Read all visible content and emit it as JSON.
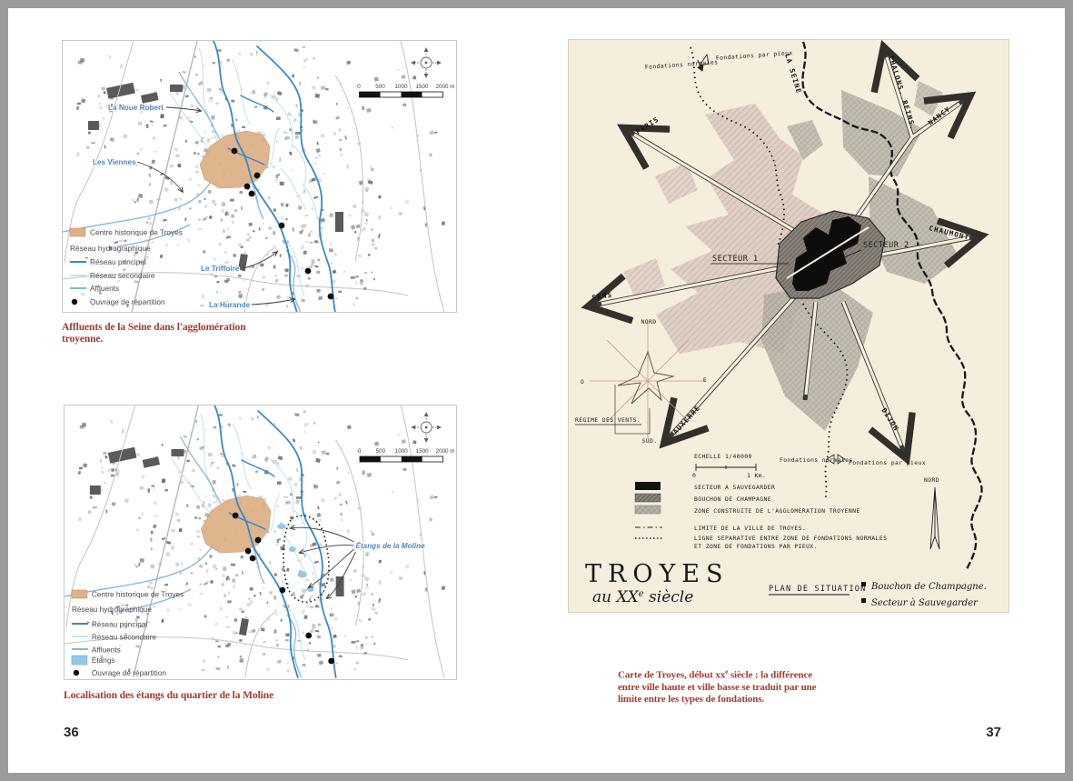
{
  "page": {
    "left_number": "36",
    "right_number": "37"
  },
  "map1": {
    "caption": {
      "line1": "Affluents de la Seine dans l'agglomération",
      "line2": "troyenne."
    },
    "place_labels": {
      "noue_robert": "La Noue Robert",
      "viennes": "Les Viennes",
      "triffoire": "Le Triffoire",
      "hurande": "La Hurande"
    },
    "legend": {
      "centre": "Centre historique de Troyes",
      "header": "Réseau hydrographique",
      "principal": "Réseau principal",
      "secondaire": "Réseau secondaire",
      "affluents": "Affluents",
      "ouvrage": "Ouvrage de répartition"
    },
    "scalebar": {
      "t0": "0",
      "t500": "500",
      "t1000": "1000",
      "t1500": "1500",
      "t2000": "2000 m"
    }
  },
  "map2": {
    "caption": "Localisation des étangs du quartier de la Moline",
    "place_labels": {
      "etangs_moline": "Étangs de la Moline"
    },
    "legend": {
      "centre": "Centre historique de Troyes",
      "header": "Réseau hydrographique",
      "principal": "Réseau principal",
      "secondaire": "Réseau secondaire",
      "affluents": "Affluents",
      "etangs": "Étangs",
      "ouvrage": "Ouvrage de répartition"
    },
    "scalebar": {
      "t0": "0",
      "t500": "500",
      "t1000": "1000",
      "t1500": "1500",
      "t2000": "2000 m"
    }
  },
  "histmap": {
    "roads": {
      "paris": "PARIS",
      "sens": "SENS",
      "auxerre": "AUXERRE",
      "dijon": "DIJON",
      "chaumont": "CHAUMONT",
      "nancy": "NANCY",
      "chalons": "CHALONS. REIMS.",
      "seine": "LA SEINE"
    },
    "sectors": {
      "s1": "SECTEUR 1",
      "s2": "SECTEUR 2"
    },
    "annotations": {
      "fond_normales_top": "Fondations normales",
      "fond_pieux_top": "Fondations par pieux",
      "fond_normales": "Fondations normales",
      "fond_pieux": "Fondations par pieux",
      "echelle": "ECHELLE  1/40000",
      "scale_0": "0",
      "scale_1km": "1 Km.",
      "regime": "RÉGIME DES VENTS.",
      "nord_rose": "NORD",
      "sud_rose": "SUD.",
      "ouest_rose": "O",
      "est_rose": "E",
      "nord_big": "NORD"
    },
    "legend": {
      "r1": "SECTEUR A SAUVEGARDER",
      "r2": "BOUCHON DE CHAMPAGNE",
      "r3": "ZONE CONSTRUITE DE L'AGGLOMERATION TROYENNE",
      "r4": "LIMITE DE LA VILLE DE TROYES.",
      "r5a": "LIGNE SEPARATIVE ENTRE ZONE DE FONDATIONS NORMALES",
      "r5b": "ET ZONE DE FONDATIONS PAR PIEUX."
    },
    "title": {
      "main": "TROYES",
      "sub_pre": "au XX",
      "sub_sup": "e",
      "sub_post": " siècle"
    },
    "plan": {
      "title": "PLAN DE SITUATION",
      "item1": "Bouchon de Champagne.",
      "item2": "Secteur à Sauvegarder"
    },
    "caption": {
      "line1_pre": "Carte de Troyes, début xx",
      "line1_sup": "e",
      "line1_post": " siècle : la différence",
      "line2": "entre ville haute et ville basse se traduit par une",
      "line3": "limite entre les types de fondations."
    }
  },
  "colors": {
    "caption_red": "#a23b2e",
    "river_main": "#3a88c6",
    "river_secondary": "#c7e3f2",
    "river_affluent": "#82b8dd",
    "centre_orange": "#deb287",
    "etang_blue": "#93c9e6",
    "label_blue": "#4f86c6",
    "hist_paper": "#f5eedd"
  }
}
